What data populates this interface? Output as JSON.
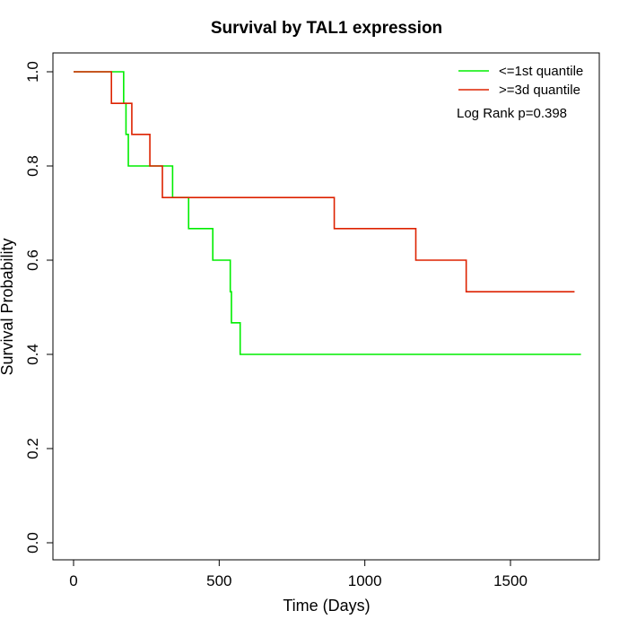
{
  "chart_data": {
    "type": "line",
    "step": true,
    "title": "Survival by TAL1 expression",
    "xlabel": "Time (Days)",
    "ylabel": "Survival Probability",
    "xlim": [
      0,
      1750
    ],
    "ylim": [
      0,
      1
    ],
    "x_ticks": [
      0,
      500,
      1000,
      1500
    ],
    "y_ticks": [
      0.0,
      0.2,
      0.4,
      0.6,
      0.8,
      1.0
    ],
    "y_tick_labels": [
      "0.0",
      "0.2",
      "0.4",
      "0.6",
      "0.8",
      "1.0"
    ],
    "grid": false,
    "legend_position": "top-right",
    "annotation": "Log Rank p=0.398",
    "series": [
      {
        "name": "<=1st quantile",
        "color": "#00ee00",
        "x": [
          0,
          172,
          180,
          188,
          340,
          395,
          478,
          538,
          542,
          572,
          1742
        ],
        "y": [
          1.0,
          0.933,
          0.867,
          0.8,
          0.733,
          0.667,
          0.6,
          0.533,
          0.467,
          0.4,
          0.4
        ]
      },
      {
        "name": ">=3d quantile",
        "color": "#dd2200",
        "x": [
          0,
          130,
          200,
          262,
          305,
          895,
          1175,
          1348,
          1720
        ],
        "y": [
          1.0,
          0.933,
          0.867,
          0.8,
          0.733,
          0.667,
          0.6,
          0.533,
          0.533
        ]
      }
    ]
  }
}
